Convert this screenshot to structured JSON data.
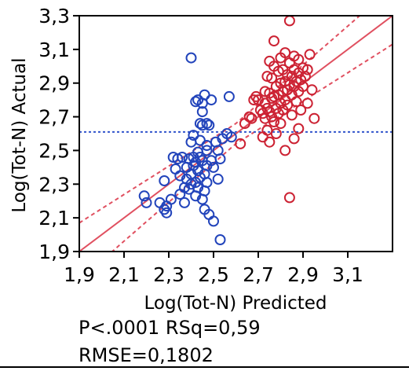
{
  "chart_data": {
    "type": "scatter",
    "xlabel": "Log(Tot-N) Predicted",
    "ylabel": "Log(Tot-N) Actual",
    "xlim": [
      1.9,
      3.3
    ],
    "ylim": [
      1.9,
      3.3
    ],
    "x_ticks": [
      "1,9",
      "2,1",
      "2,3",
      "2,5",
      "2,7",
      "2,9",
      "3,1"
    ],
    "y_ticks": [
      "1,9",
      "2,1",
      "2,3",
      "2,5",
      "2,7",
      "2,9",
      "3,1",
      "3,3"
    ],
    "x_tick_values": [
      1.9,
      2.1,
      2.3,
      2.5,
      2.7,
      2.9,
      3.1
    ],
    "y_tick_values": [
      1.9,
      2.1,
      2.3,
      2.5,
      2.7,
      2.9,
      3.1,
      3.3
    ],
    "grid": false,
    "mean_line": {
      "y": 2.61,
      "color": "#3355cc",
      "style": "dotted"
    },
    "fit_line": {
      "intercept": 0.0,
      "slope": 1.0,
      "color": "#e05060"
    },
    "confidence_band": {
      "offsets": [
        [
          1.9,
          0.17
        ],
        [
          2.6,
          0.06
        ],
        [
          3.3,
          0.17
        ]
      ],
      "color": "#e05060",
      "style": "dotted"
    },
    "series": [
      {
        "color": "#2244bb",
        "points": [
          [
            2.19,
            2.23
          ],
          [
            2.2,
            2.19
          ],
          [
            2.26,
            2.19
          ],
          [
            2.28,
            2.32
          ],
          [
            2.28,
            2.15
          ],
          [
            2.29,
            2.13
          ],
          [
            2.29,
            2.17
          ],
          [
            2.31,
            2.21
          ],
          [
            2.32,
            2.46
          ],
          [
            2.33,
            2.39
          ],
          [
            2.34,
            2.45
          ],
          [
            2.35,
            2.35
          ],
          [
            2.35,
            2.24
          ],
          [
            2.36,
            2.46
          ],
          [
            2.37,
            2.28
          ],
          [
            2.37,
            2.19
          ],
          [
            2.38,
            2.4
          ],
          [
            2.38,
            2.33
          ],
          [
            2.39,
            2.45
          ],
          [
            2.39,
            2.27
          ],
          [
            2.4,
            3.05
          ],
          [
            2.4,
            2.55
          ],
          [
            2.4,
            2.36
          ],
          [
            2.4,
            2.3
          ],
          [
            2.41,
            2.59
          ],
          [
            2.41,
            2.46
          ],
          [
            2.41,
            2.41
          ],
          [
            2.42,
            2.79
          ],
          [
            2.42,
            2.43
          ],
          [
            2.42,
            2.31
          ],
          [
            2.42,
            2.23
          ],
          [
            2.43,
            2.8
          ],
          [
            2.43,
            2.49
          ],
          [
            2.43,
            2.38
          ],
          [
            2.43,
            2.28
          ],
          [
            2.44,
            2.66
          ],
          [
            2.44,
            2.56
          ],
          [
            2.44,
            2.46
          ],
          [
            2.44,
            2.34
          ],
          [
            2.45,
            2.78
          ],
          [
            2.45,
            2.73
          ],
          [
            2.45,
            2.65
          ],
          [
            2.45,
            2.44
          ],
          [
            2.45,
            2.21
          ],
          [
            2.46,
            2.83
          ],
          [
            2.46,
            2.36
          ],
          [
            2.46,
            2.26
          ],
          [
            2.46,
            2.15
          ],
          [
            2.47,
            2.66
          ],
          [
            2.47,
            2.53
          ],
          [
            2.47,
            2.5
          ],
          [
            2.47,
            2.41
          ],
          [
            2.47,
            2.31
          ],
          [
            2.48,
            2.65
          ],
          [
            2.48,
            2.12
          ],
          [
            2.49,
            2.8
          ],
          [
            2.49,
            2.44
          ],
          [
            2.5,
            2.4
          ],
          [
            2.5,
            2.08
          ],
          [
            2.51,
            2.55
          ],
          [
            2.52,
            2.5
          ],
          [
            2.52,
            2.33
          ],
          [
            2.53,
            1.97
          ],
          [
            2.53,
            2.45
          ],
          [
            2.54,
            2.57
          ],
          [
            2.56,
            2.6
          ],
          [
            2.57,
            2.82
          ],
          [
            2.58,
            2.58
          ]
        ]
      },
      {
        "color": "#cc2233",
        "points": [
          [
            2.62,
            2.54
          ],
          [
            2.64,
            2.66
          ],
          [
            2.66,
            2.7
          ],
          [
            2.67,
            2.69
          ],
          [
            2.68,
            2.8
          ],
          [
            2.69,
            2.82
          ],
          [
            2.7,
            2.8
          ],
          [
            2.71,
            2.74
          ],
          [
            2.72,
            2.72
          ],
          [
            2.72,
            2.58
          ],
          [
            2.73,
            2.85
          ],
          [
            2.73,
            2.78
          ],
          [
            2.73,
            2.69
          ],
          [
            2.74,
            2.94
          ],
          [
            2.74,
            2.75
          ],
          [
            2.74,
            2.62
          ],
          [
            2.75,
            3.03
          ],
          [
            2.75,
            2.84
          ],
          [
            2.75,
            2.73
          ],
          [
            2.75,
            2.55
          ],
          [
            2.76,
            2.93
          ],
          [
            2.76,
            2.81
          ],
          [
            2.76,
            2.7
          ],
          [
            2.77,
            3.15
          ],
          [
            2.77,
            3.0
          ],
          [
            2.77,
            2.82
          ],
          [
            2.77,
            2.67
          ],
          [
            2.78,
            2.88
          ],
          [
            2.78,
            2.75
          ],
          [
            2.78,
            2.6
          ],
          [
            2.79,
            2.97
          ],
          [
            2.79,
            2.83
          ],
          [
            2.79,
            2.72
          ],
          [
            2.8,
            3.05
          ],
          [
            2.8,
            2.9
          ],
          [
            2.8,
            2.78
          ],
          [
            2.8,
            2.66
          ],
          [
            2.81,
            2.98
          ],
          [
            2.81,
            2.85
          ],
          [
            2.81,
            2.74
          ],
          [
            2.82,
            3.08
          ],
          [
            2.82,
            2.91
          ],
          [
            2.82,
            2.8
          ],
          [
            2.82,
            2.5
          ],
          [
            2.83,
            2.95
          ],
          [
            2.83,
            2.86
          ],
          [
            2.83,
            2.77
          ],
          [
            2.84,
            3.27
          ],
          [
            2.84,
            3.02
          ],
          [
            2.84,
            2.89
          ],
          [
            2.84,
            2.22
          ],
          [
            2.85,
            2.94
          ],
          [
            2.85,
            2.83
          ],
          [
            2.85,
            2.71
          ],
          [
            2.86,
            3.06
          ],
          [
            2.86,
            2.98
          ],
          [
            2.86,
            2.88
          ],
          [
            2.86,
            2.57
          ],
          [
            2.87,
            2.91
          ],
          [
            2.87,
            2.79
          ],
          [
            2.88,
            3.04
          ],
          [
            2.88,
            2.96
          ],
          [
            2.88,
            2.85
          ],
          [
            2.88,
            2.63
          ],
          [
            2.89,
            2.92
          ],
          [
            2.89,
            2.74
          ],
          [
            2.9,
            2.99
          ],
          [
            2.9,
            2.88
          ],
          [
            2.91,
            2.94
          ],
          [
            2.92,
            2.78
          ],
          [
            2.92,
            2.98
          ],
          [
            2.93,
            3.07
          ],
          [
            2.94,
            2.86
          ],
          [
            2.95,
            2.69
          ]
        ]
      }
    ]
  },
  "stats": {
    "line1": "P<.0001 RSq=0,59",
    "line2": "RMSE=0,1802"
  }
}
